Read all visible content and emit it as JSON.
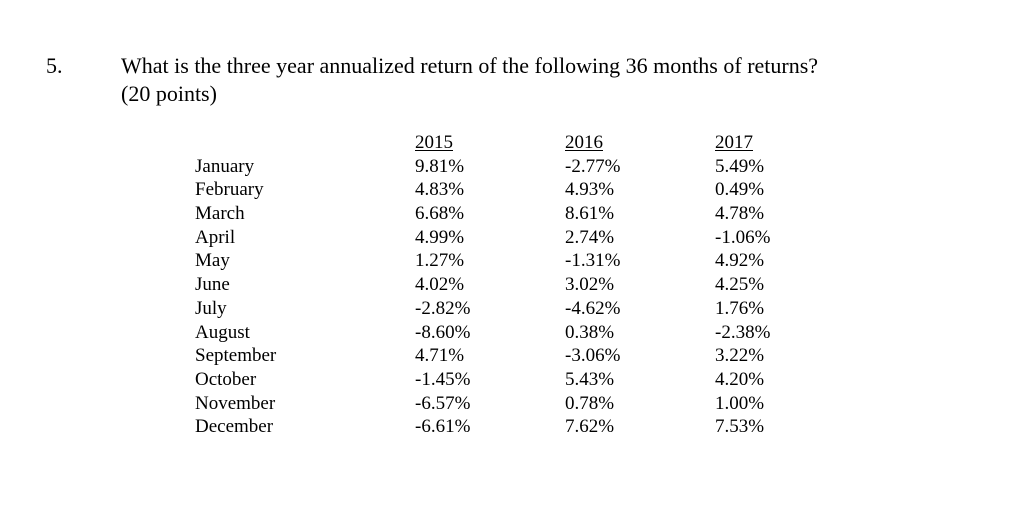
{
  "question": {
    "number": "5.",
    "line1": "What is the three year annualized return of the following 36 months of returns?",
    "line2": "(20 points)"
  },
  "table": {
    "years": [
      "2015",
      "2016",
      "2017"
    ],
    "months": [
      "January",
      "February",
      "March",
      "April",
      "May",
      "June",
      "July",
      "August",
      "September",
      "October",
      "November",
      "December"
    ],
    "returns": {
      "2015": [
        "9.81%",
        "4.83%",
        "6.68%",
        "4.99%",
        "1.27%",
        "4.02%",
        "-2.82%",
        "-8.60%",
        "4.71%",
        "-1.45%",
        "-6.57%",
        "-6.61%"
      ],
      "2016": [
        "-2.77%",
        "4.93%",
        "8.61%",
        "2.74%",
        "-1.31%",
        "3.02%",
        "-4.62%",
        "0.38%",
        "-3.06%",
        "5.43%",
        "0.78%",
        "7.62%"
      ],
      "2017": [
        "5.49%",
        "0.49%",
        "4.78%",
        "-1.06%",
        "4.92%",
        "4.25%",
        "1.76%",
        "-2.38%",
        "3.22%",
        "4.20%",
        "1.00%",
        "7.53%"
      ]
    }
  }
}
